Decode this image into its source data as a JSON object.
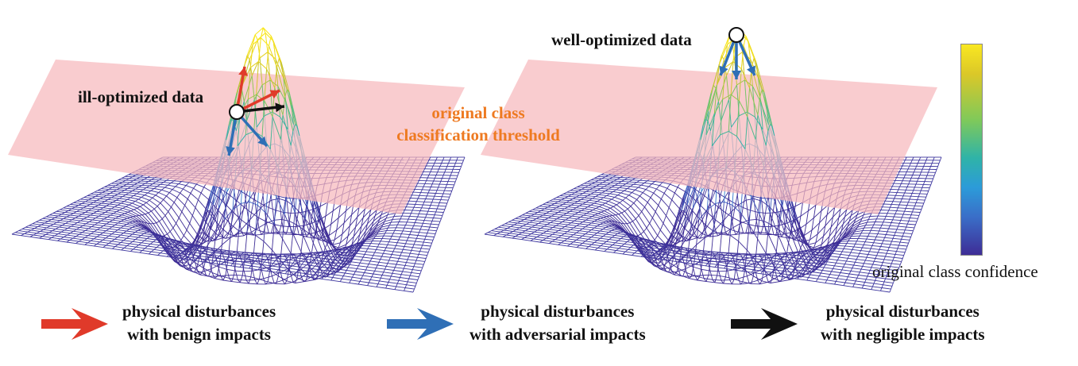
{
  "labels": {
    "ill_optimized": "ill-optimized data",
    "well_optimized": "well-optimized data",
    "threshold_line1": "original class",
    "threshold_line2": "classification threshold",
    "colorbar": "original class confidence"
  },
  "legend": [
    {
      "color": "#e03a2a",
      "line1": "physical disturbances",
      "line2": "with benign impacts"
    },
    {
      "color": "#2f6fb6",
      "line1": "physical disturbances",
      "line2": "with adversarial impacts"
    },
    {
      "color": "#111111",
      "line1": "physical disturbances",
      "line2": "with negligible impacts"
    }
  ],
  "colors": {
    "threshold_plane": "#f7b9bd",
    "mesh_low": "#4a3fb0",
    "mesh_high": "#f2e22a",
    "threshold_text": "#ee7a21",
    "benign_arrow": "#e03a2a",
    "adversarial_arrow": "#2f6fb6",
    "negligible_arrow": "#111111"
  }
}
